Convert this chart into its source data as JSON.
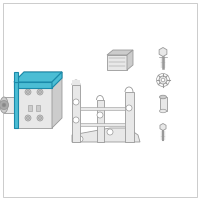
{
  "bg_color": "#ffffff",
  "line_color": "#999999",
  "blue_fill": "#4bbdd4",
  "blue_stroke": "#1a8aaa",
  "light_gray": "#e8e8e8",
  "mid_gray": "#cccccc",
  "dark_gray": "#aaaaaa",
  "border_color": "#cccccc"
}
